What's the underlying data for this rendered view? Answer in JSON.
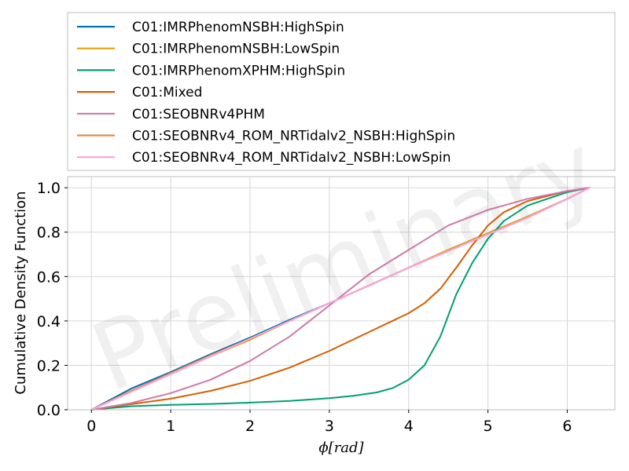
{
  "chart_data": {
    "type": "line",
    "title": "",
    "xlabel": "ϕ[rad]",
    "ylabel": "Cumulative Density Function",
    "xlim": [
      -0.3,
      6.6
    ],
    "ylim": [
      0.0,
      1.05
    ],
    "xticks": [
      0,
      1,
      2,
      3,
      4,
      5,
      6
    ],
    "yticks": [
      0.0,
      0.2,
      0.4,
      0.6,
      0.8,
      1.0
    ],
    "xtick_labels": [
      "0",
      "1",
      "2",
      "3",
      "4",
      "5",
      "6"
    ],
    "ytick_labels": [
      "0.0",
      "0.2",
      "0.4",
      "0.6",
      "0.8",
      "1.0"
    ],
    "grid": true,
    "legend_placement": "above plot",
    "watermark": "Preliminary",
    "series": [
      {
        "name": "C01:IMRPhenomNSBH:HighSpin",
        "color": "#0072b2",
        "x": [
          0,
          0.5,
          1,
          1.5,
          2,
          2.5,
          3,
          3.5,
          4,
          4.5,
          5,
          5.5,
          6,
          6.28
        ],
        "y": [
          0,
          0.095,
          0.17,
          0.25,
          0.325,
          0.405,
          0.48,
          0.56,
          0.64,
          0.72,
          0.795,
          0.87,
          0.95,
          1.0
        ]
      },
      {
        "name": "C01:IMRPhenomNSBH:LowSpin",
        "color": "#e69f00",
        "x": [
          0,
          0.5,
          1,
          1.5,
          2,
          2.5,
          3,
          3.5,
          4,
          4.5,
          5,
          5.5,
          6,
          6.28
        ],
        "y": [
          0,
          0.085,
          0.16,
          0.24,
          0.315,
          0.4,
          0.48,
          0.56,
          0.64,
          0.72,
          0.795,
          0.87,
          0.95,
          1.0
        ]
      },
      {
        "name": "C01:IMRPhenomXPHM:HighSpin",
        "color": "#009e73",
        "x": [
          0,
          0.5,
          1,
          1.5,
          2,
          2.5,
          3,
          3.3,
          3.6,
          3.8,
          4.0,
          4.2,
          4.4,
          4.6,
          4.8,
          5.0,
          5.2,
          5.5,
          6.0,
          6.28
        ],
        "y": [
          0,
          0.016,
          0.022,
          0.026,
          0.032,
          0.04,
          0.052,
          0.063,
          0.078,
          0.098,
          0.135,
          0.2,
          0.33,
          0.52,
          0.66,
          0.77,
          0.85,
          0.92,
          0.98,
          1.0
        ]
      },
      {
        "name": "C01:Mixed",
        "color": "#d55e00",
        "x": [
          0,
          0.5,
          1,
          1.5,
          2,
          2.5,
          3,
          3.5,
          4,
          4.2,
          4.4,
          4.6,
          4.8,
          5,
          5.2,
          5.5,
          6,
          6.28
        ],
        "y": [
          0,
          0.025,
          0.05,
          0.085,
          0.13,
          0.19,
          0.265,
          0.35,
          0.435,
          0.48,
          0.545,
          0.64,
          0.74,
          0.83,
          0.89,
          0.94,
          0.985,
          1.0
        ]
      },
      {
        "name": "C01:SEOBNRv4PHM",
        "color": "#cc79a7",
        "x": [
          0,
          0.5,
          1,
          1.5,
          2,
          2.5,
          3,
          3.5,
          4,
          4.5,
          5,
          5.5,
          6,
          6.28
        ],
        "y": [
          0,
          0.03,
          0.075,
          0.135,
          0.22,
          0.33,
          0.47,
          0.61,
          0.72,
          0.83,
          0.9,
          0.95,
          0.985,
          1.0
        ]
      },
      {
        "name": "C01:SEOBNRv4_ROM_NRTidalv2_NSBH:HighSpin",
        "color": "#e08a4a",
        "x": [
          0,
          0.5,
          1,
          1.5,
          2,
          2.5,
          3,
          3.5,
          4,
          4.5,
          5,
          5.5,
          6,
          6.28
        ],
        "y": [
          0,
          0.085,
          0.165,
          0.245,
          0.32,
          0.4,
          0.48,
          0.56,
          0.64,
          0.715,
          0.79,
          0.865,
          0.95,
          1.0
        ]
      },
      {
        "name": "C01:SEOBNRv4_ROM_NRTidalv2_NSBH:LowSpin",
        "color": "#f9a3e0",
        "x": [
          0,
          0.5,
          1,
          1.5,
          2,
          2.5,
          3,
          3.5,
          4,
          4.5,
          5,
          5.5,
          6,
          6.28
        ],
        "y": [
          0,
          0.08,
          0.16,
          0.24,
          0.32,
          0.4,
          0.48,
          0.56,
          0.64,
          0.715,
          0.79,
          0.865,
          0.95,
          1.0
        ]
      }
    ]
  }
}
